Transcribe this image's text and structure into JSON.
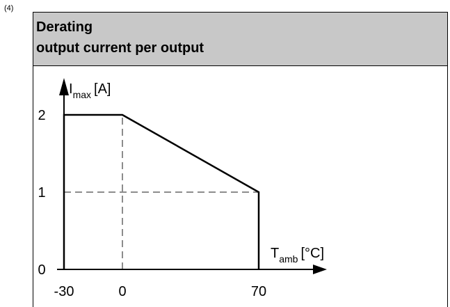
{
  "footnote": "(4)",
  "header": {
    "line1": "Derating",
    "line2": "output current per output"
  },
  "chart_data": {
    "type": "line",
    "title": "Derating output current per output",
    "ylabel_main": "I",
    "ylabel_sub": "max",
    "ylabel_unit": "[A]",
    "xlabel_main": "T",
    "xlabel_sub": "amb",
    "xlabel_unit": "[°C]",
    "x_ticks": [
      {
        "value": -30,
        "label": "-30"
      },
      {
        "value": 0,
        "label": "0"
      },
      {
        "value": 70,
        "label": "70"
      }
    ],
    "y_ticks": [
      {
        "value": 0,
        "label": "0"
      },
      {
        "value": 1,
        "label": "1"
      },
      {
        "value": 2,
        "label": "2"
      }
    ],
    "series": [
      {
        "points": [
          {
            "x": -30,
            "y": 0
          },
          {
            "x": -30,
            "y": 2
          },
          {
            "x": 0,
            "y": 2
          },
          {
            "x": 70,
            "y": 1
          },
          {
            "x": 70,
            "y": 0
          }
        ]
      }
    ],
    "reference_lines": [
      {
        "from": {
          "x": 0,
          "y": 0
        },
        "to": {
          "x": 0,
          "y": 2
        },
        "style": "dashed"
      },
      {
        "from": {
          "x": -30,
          "y": 1
        },
        "to": {
          "x": 70,
          "y": 1
        },
        "style": "dashed"
      }
    ],
    "xlim": [
      -30,
      70
    ],
    "ylim": [
      0,
      2
    ],
    "grid": false,
    "colors": {
      "line": "#000000",
      "dashed": "#8c8c8c",
      "header": "#c8c8c8"
    }
  }
}
